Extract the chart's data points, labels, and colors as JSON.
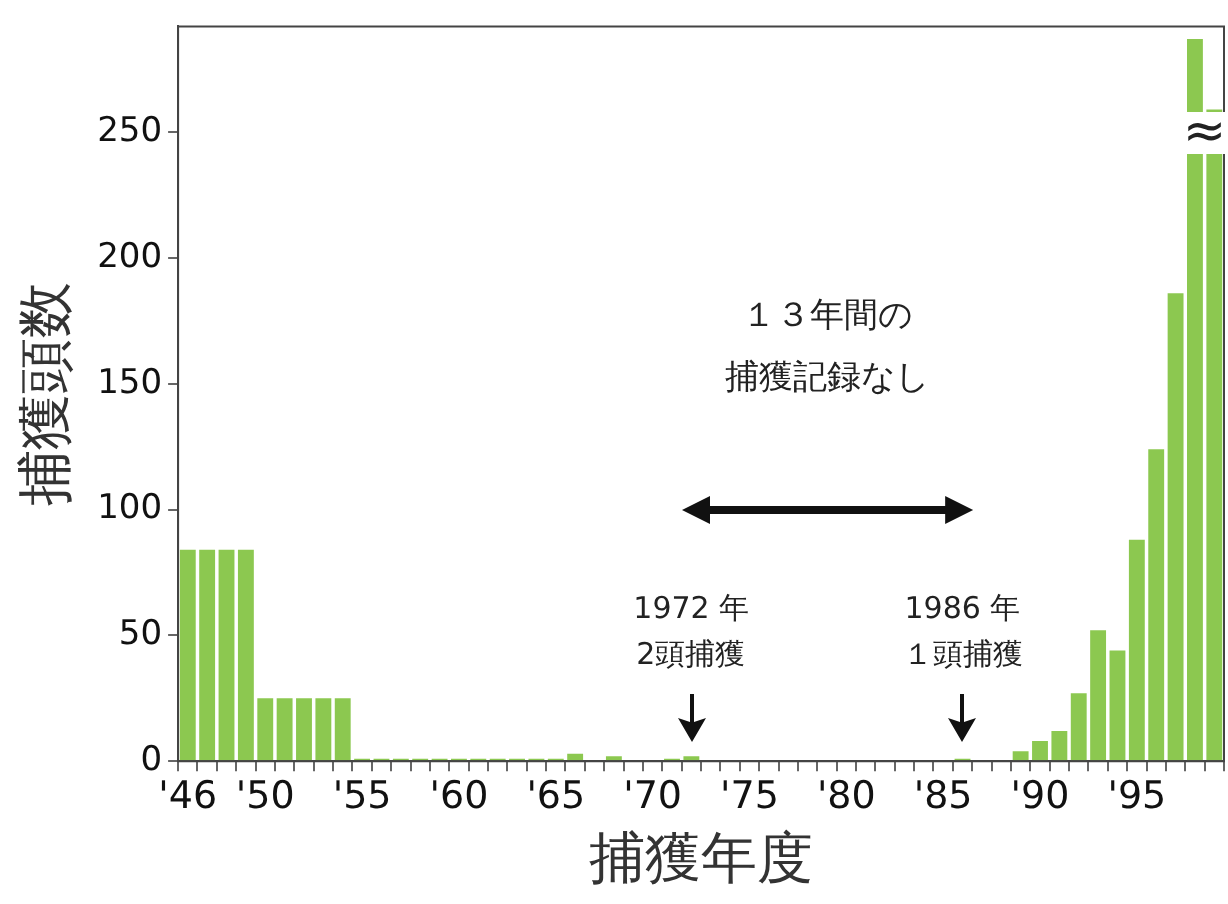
{
  "chart_data": {
    "type": "bar",
    "xlabel": "捕獲年度",
    "ylabel": "捕獲頭数",
    "categories": [
      "'46",
      null,
      null,
      null,
      "'50",
      null,
      null,
      null,
      null,
      "'55",
      null,
      null,
      null,
      null,
      "'60",
      null,
      null,
      null,
      null,
      "'65",
      null,
      null,
      null,
      null,
      "'70",
      null,
      null,
      null,
      null,
      "'75",
      null,
      null,
      null,
      null,
      "'80",
      null,
      null,
      null,
      null,
      "'85",
      null,
      null,
      null,
      null,
      "'90",
      null,
      null,
      null,
      null,
      "'95",
      null,
      null,
      null,
      null
    ],
    "values": [
      84,
      84,
      84,
      84,
      25,
      25,
      25,
      25,
      25,
      1,
      1,
      1,
      1,
      1,
      1,
      1,
      1,
      1,
      1,
      1,
      3,
      0,
      2,
      0,
      0,
      1,
      2,
      0,
      0,
      0,
      0,
      0,
      0,
      0,
      0,
      0,
      0,
      0,
      0,
      0,
      1,
      0,
      0,
      4,
      8,
      12,
      27,
      52,
      44,
      88,
      124,
      186,
      287,
      259
    ],
    "color": "#8cc850",
    "ylim": [
      0,
      292
    ],
    "yticks": [
      0,
      50,
      100,
      150,
      200,
      250
    ],
    "grid": false,
    "annotations": [
      "１３年間の",
      "捕獲記録なし",
      "1972 年",
      "2頭捕獲",
      "1986 年",
      "１頭捕獲",
      "≈"
    ]
  }
}
